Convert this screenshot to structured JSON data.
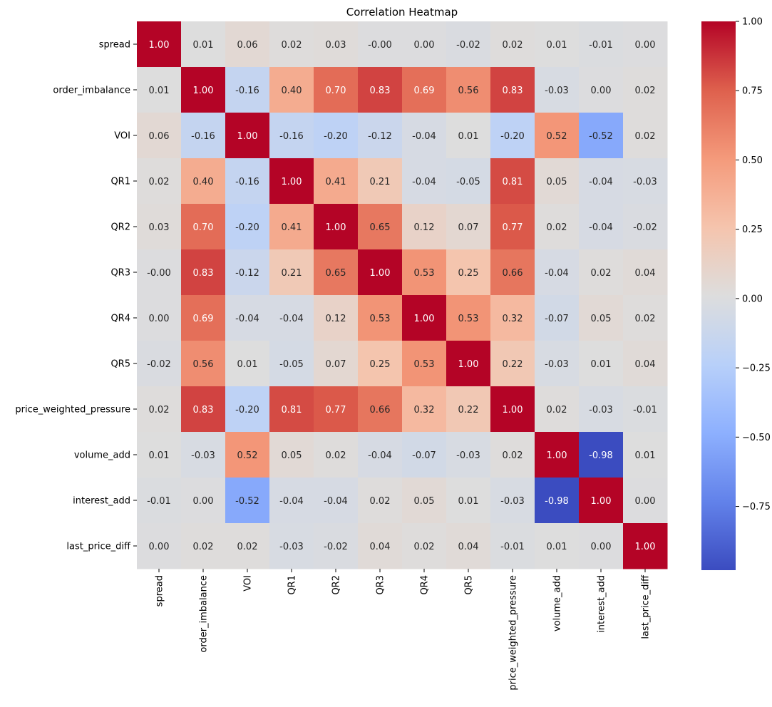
{
  "chart_data": {
    "type": "heatmap",
    "title": "Correlation Heatmap",
    "labels": [
      "spread",
      "order_imbalance",
      "VOI",
      "QR1",
      "QR2",
      "QR3",
      "QR4",
      "QR5",
      "price_weighted_pressure",
      "volume_add",
      "interest_add",
      "last_price_diff"
    ],
    "values": [
      [
        1.0,
        0.01,
        0.06,
        0.02,
        0.03,
        -0.0,
        0.0,
        -0.02,
        0.02,
        0.01,
        -0.01,
        0.0
      ],
      [
        0.01,
        1.0,
        -0.16,
        0.4,
        0.7,
        0.83,
        0.69,
        0.56,
        0.83,
        -0.03,
        0.0,
        0.02
      ],
      [
        0.06,
        -0.16,
        1.0,
        -0.16,
        -0.2,
        -0.12,
        -0.04,
        0.01,
        -0.2,
        0.52,
        -0.52,
        0.02
      ],
      [
        0.02,
        0.4,
        -0.16,
        1.0,
        0.41,
        0.21,
        -0.04,
        -0.05,
        0.81,
        0.05,
        -0.04,
        -0.03
      ],
      [
        0.03,
        0.7,
        -0.2,
        0.41,
        1.0,
        0.65,
        0.12,
        0.07,
        0.77,
        0.02,
        -0.04,
        -0.02
      ],
      [
        -0.0,
        0.83,
        -0.12,
        0.21,
        0.65,
        1.0,
        0.53,
        0.25,
        0.66,
        -0.04,
        0.02,
        0.04
      ],
      [
        0.0,
        0.69,
        -0.04,
        -0.04,
        0.12,
        0.53,
        1.0,
        0.53,
        0.32,
        -0.07,
        0.05,
        0.02
      ],
      [
        -0.02,
        0.56,
        0.01,
        -0.05,
        0.07,
        0.25,
        0.53,
        1.0,
        0.22,
        -0.03,
        0.01,
        0.04
      ],
      [
        0.02,
        0.83,
        -0.2,
        0.81,
        0.77,
        0.66,
        0.32,
        0.22,
        1.0,
        0.02,
        -0.03,
        -0.01
      ],
      [
        0.01,
        -0.03,
        0.52,
        0.05,
        0.02,
        -0.04,
        -0.07,
        -0.03,
        0.02,
        1.0,
        -0.98,
        0.01
      ],
      [
        -0.01,
        0.0,
        -0.52,
        -0.04,
        -0.04,
        0.02,
        0.05,
        0.01,
        -0.03,
        -0.98,
        1.0,
        0.0
      ],
      [
        0.0,
        0.02,
        0.02,
        -0.03,
        -0.02,
        0.04,
        0.02,
        0.04,
        -0.01,
        0.01,
        0.0,
        1.0
      ]
    ],
    "value_labels": [
      [
        "1.00",
        "0.01",
        "0.06",
        "0.02",
        "0.03",
        "-0.00",
        "0.00",
        "-0.02",
        "0.02",
        "0.01",
        "-0.01",
        "0.00"
      ],
      [
        "0.01",
        "1.00",
        "-0.16",
        "0.40",
        "0.70",
        "0.83",
        "0.69",
        "0.56",
        "0.83",
        "-0.03",
        "0.00",
        "0.02"
      ],
      [
        "0.06",
        "-0.16",
        "1.00",
        "-0.16",
        "-0.20",
        "-0.12",
        "-0.04",
        "0.01",
        "-0.20",
        "0.52",
        "-0.52",
        "0.02"
      ],
      [
        "0.02",
        "0.40",
        "-0.16",
        "1.00",
        "0.41",
        "0.21",
        "-0.04",
        "-0.05",
        "0.81",
        "0.05",
        "-0.04",
        "-0.03"
      ],
      [
        "0.03",
        "0.70",
        "-0.20",
        "0.41",
        "1.00",
        "0.65",
        "0.12",
        "0.07",
        "0.77",
        "0.02",
        "-0.04",
        "-0.02"
      ],
      [
        "-0.00",
        "0.83",
        "-0.12",
        "0.21",
        "0.65",
        "1.00",
        "0.53",
        "0.25",
        "0.66",
        "-0.04",
        "0.02",
        "0.04"
      ],
      [
        "0.00",
        "0.69",
        "-0.04",
        "-0.04",
        "0.12",
        "0.53",
        "1.00",
        "0.53",
        "0.32",
        "-0.07",
        "0.05",
        "0.02"
      ],
      [
        "-0.02",
        "0.56",
        "0.01",
        "-0.05",
        "0.07",
        "0.25",
        "0.53",
        "1.00",
        "0.22",
        "-0.03",
        "0.01",
        "0.04"
      ],
      [
        "0.02",
        "0.83",
        "-0.20",
        "0.81",
        "0.77",
        "0.66",
        "0.32",
        "0.22",
        "1.00",
        "0.02",
        "-0.03",
        "-0.01"
      ],
      [
        "0.01",
        "-0.03",
        "0.52",
        "0.05",
        "0.02",
        "-0.04",
        "-0.07",
        "-0.03",
        "0.02",
        "1.00",
        "-0.98",
        "0.01"
      ],
      [
        "-0.01",
        "0.00",
        "-0.52",
        "-0.04",
        "-0.04",
        "0.02",
        "0.05",
        "0.01",
        "-0.03",
        "-0.98",
        "1.00",
        "0.00"
      ],
      [
        "0.00",
        "0.02",
        "0.02",
        "-0.03",
        "-0.02",
        "0.04",
        "0.02",
        "0.04",
        "-0.01",
        "0.01",
        "0.00",
        "1.00"
      ]
    ],
    "colormap": "coolwarm",
    "vmin": -0.98,
    "vmax": 1.0,
    "colorbar_ticks": [
      1.0,
      0.75,
      0.5,
      0.25,
      0.0,
      -0.25,
      -0.5,
      -0.75
    ],
    "colorbar_tick_labels": [
      "1.00",
      "0.75",
      "0.50",
      "0.25",
      "0.00",
      "−0.25",
      "−0.50",
      "−0.75"
    ],
    "legend_position": "right"
  }
}
